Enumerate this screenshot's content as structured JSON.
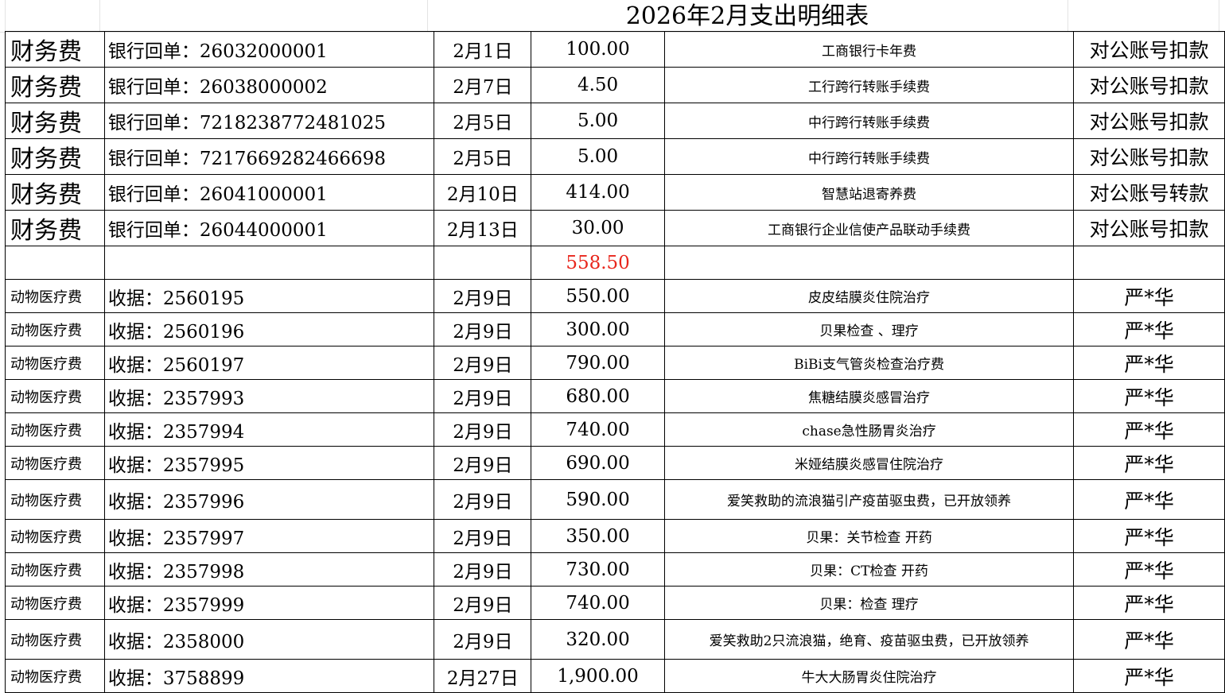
{
  "title": "2026年2月支出明细表",
  "colors": {
    "total": "#e8261c",
    "border": "#000000"
  },
  "sections": [
    {
      "rows": [
        {
          "category": "财务费",
          "voucher": "银行回单：26032000001",
          "date": "2月1日",
          "amount": "100.00",
          "description": "工商银行卡年费",
          "payer": "对公账号扣款"
        },
        {
          "category": "财务费",
          "voucher": "银行回单：26038000002",
          "date": "2月7日",
          "amount": "4.50",
          "description": "工行跨行转账手续费",
          "payer": "对公账号扣款"
        },
        {
          "category": "财务费",
          "voucher": "银行回单：7218238772481025",
          "date": "2月5日",
          "amount": "5.00",
          "description": "中行跨行转账手续费",
          "payer": "对公账号扣款"
        },
        {
          "category": "财务费",
          "voucher": "银行回单：7217669282466698",
          "date": "2月5日",
          "amount": "5.00",
          "description": "中行跨行转账手续费",
          "payer": "对公账号扣款"
        },
        {
          "category": "财务费",
          "voucher": "银行回单：26041000001",
          "date": "2月10日",
          "amount": "414.00",
          "description": "智慧站退寄养费",
          "payer": "对公账号转款"
        },
        {
          "category": "财务费",
          "voucher": "银行回单：26044000001",
          "date": "2月13日",
          "amount": "30.00",
          "description": "工商银行企业信使产品联动手续费",
          "payer": "对公账号扣款"
        }
      ],
      "subtotal": "558.50"
    },
    {
      "rows": [
        {
          "category": "动物医疗费",
          "voucher": "收据：2560195",
          "date": "2月9日",
          "amount": "550.00",
          "description": "皮皮结膜炎住院治疗",
          "payer": "严*华"
        },
        {
          "category": "动物医疗费",
          "voucher": "收据：2560196",
          "date": "2月9日",
          "amount": "300.00",
          "description": "贝果检查 、理疗",
          "payer": "严*华"
        },
        {
          "category": "动物医疗费",
          "voucher": "收据：2560197",
          "date": "2月9日",
          "amount": "790.00",
          "description": "BiBi支气管炎检查治疗费",
          "payer": "严*华"
        },
        {
          "category": "动物医疗费",
          "voucher": "收据：2357993",
          "date": "2月9日",
          "amount": "680.00",
          "description": "焦糖结膜炎感冒治疗",
          "payer": "严*华"
        },
        {
          "category": "动物医疗费",
          "voucher": "收据：2357994",
          "date": "2月9日",
          "amount": "740.00",
          "description": "chase急性肠胃炎治疗",
          "payer": "严*华"
        },
        {
          "category": "动物医疗费",
          "voucher": "收据：2357995",
          "date": "2月9日",
          "amount": "690.00",
          "description": "米娅结膜炎感冒住院治疗",
          "payer": "严*华"
        },
        {
          "category": "动物医疗费",
          "voucher": "收据：2357996",
          "date": "2月9日",
          "amount": "590.00",
          "description": "爱笑救助的流浪猫引产疫苗驱虫费，已开放领养",
          "payer": "严*华",
          "tall": true
        },
        {
          "category": "动物医疗费",
          "voucher": "收据：2357997",
          "date": "2月9日",
          "amount": "350.00",
          "description": "贝果：关节检查 开药",
          "payer": "严*华"
        },
        {
          "category": "动物医疗费",
          "voucher": "收据：2357998",
          "date": "2月9日",
          "amount": "730.00",
          "description": "贝果：CT检查 开药",
          "payer": "严*华"
        },
        {
          "category": "动物医疗费",
          "voucher": "收据：2357999",
          "date": "2月9日",
          "amount": "740.00",
          "description": "贝果：检查 理疗",
          "payer": "严*华"
        },
        {
          "category": "动物医疗费",
          "voucher": "收据：2358000",
          "date": "2月9日",
          "amount": "320.00",
          "description": "爱笑救助2只流浪猫，绝育、疫苗驱虫费，已开放领养",
          "payer": "严*华",
          "tall": true
        },
        {
          "category": "动物医疗费",
          "voucher": "收据：3758899",
          "date": "2月27日",
          "amount": "1,900.00",
          "description": "牛大大肠胃炎住院治疗",
          "payer": "严*华"
        }
      ]
    }
  ]
}
